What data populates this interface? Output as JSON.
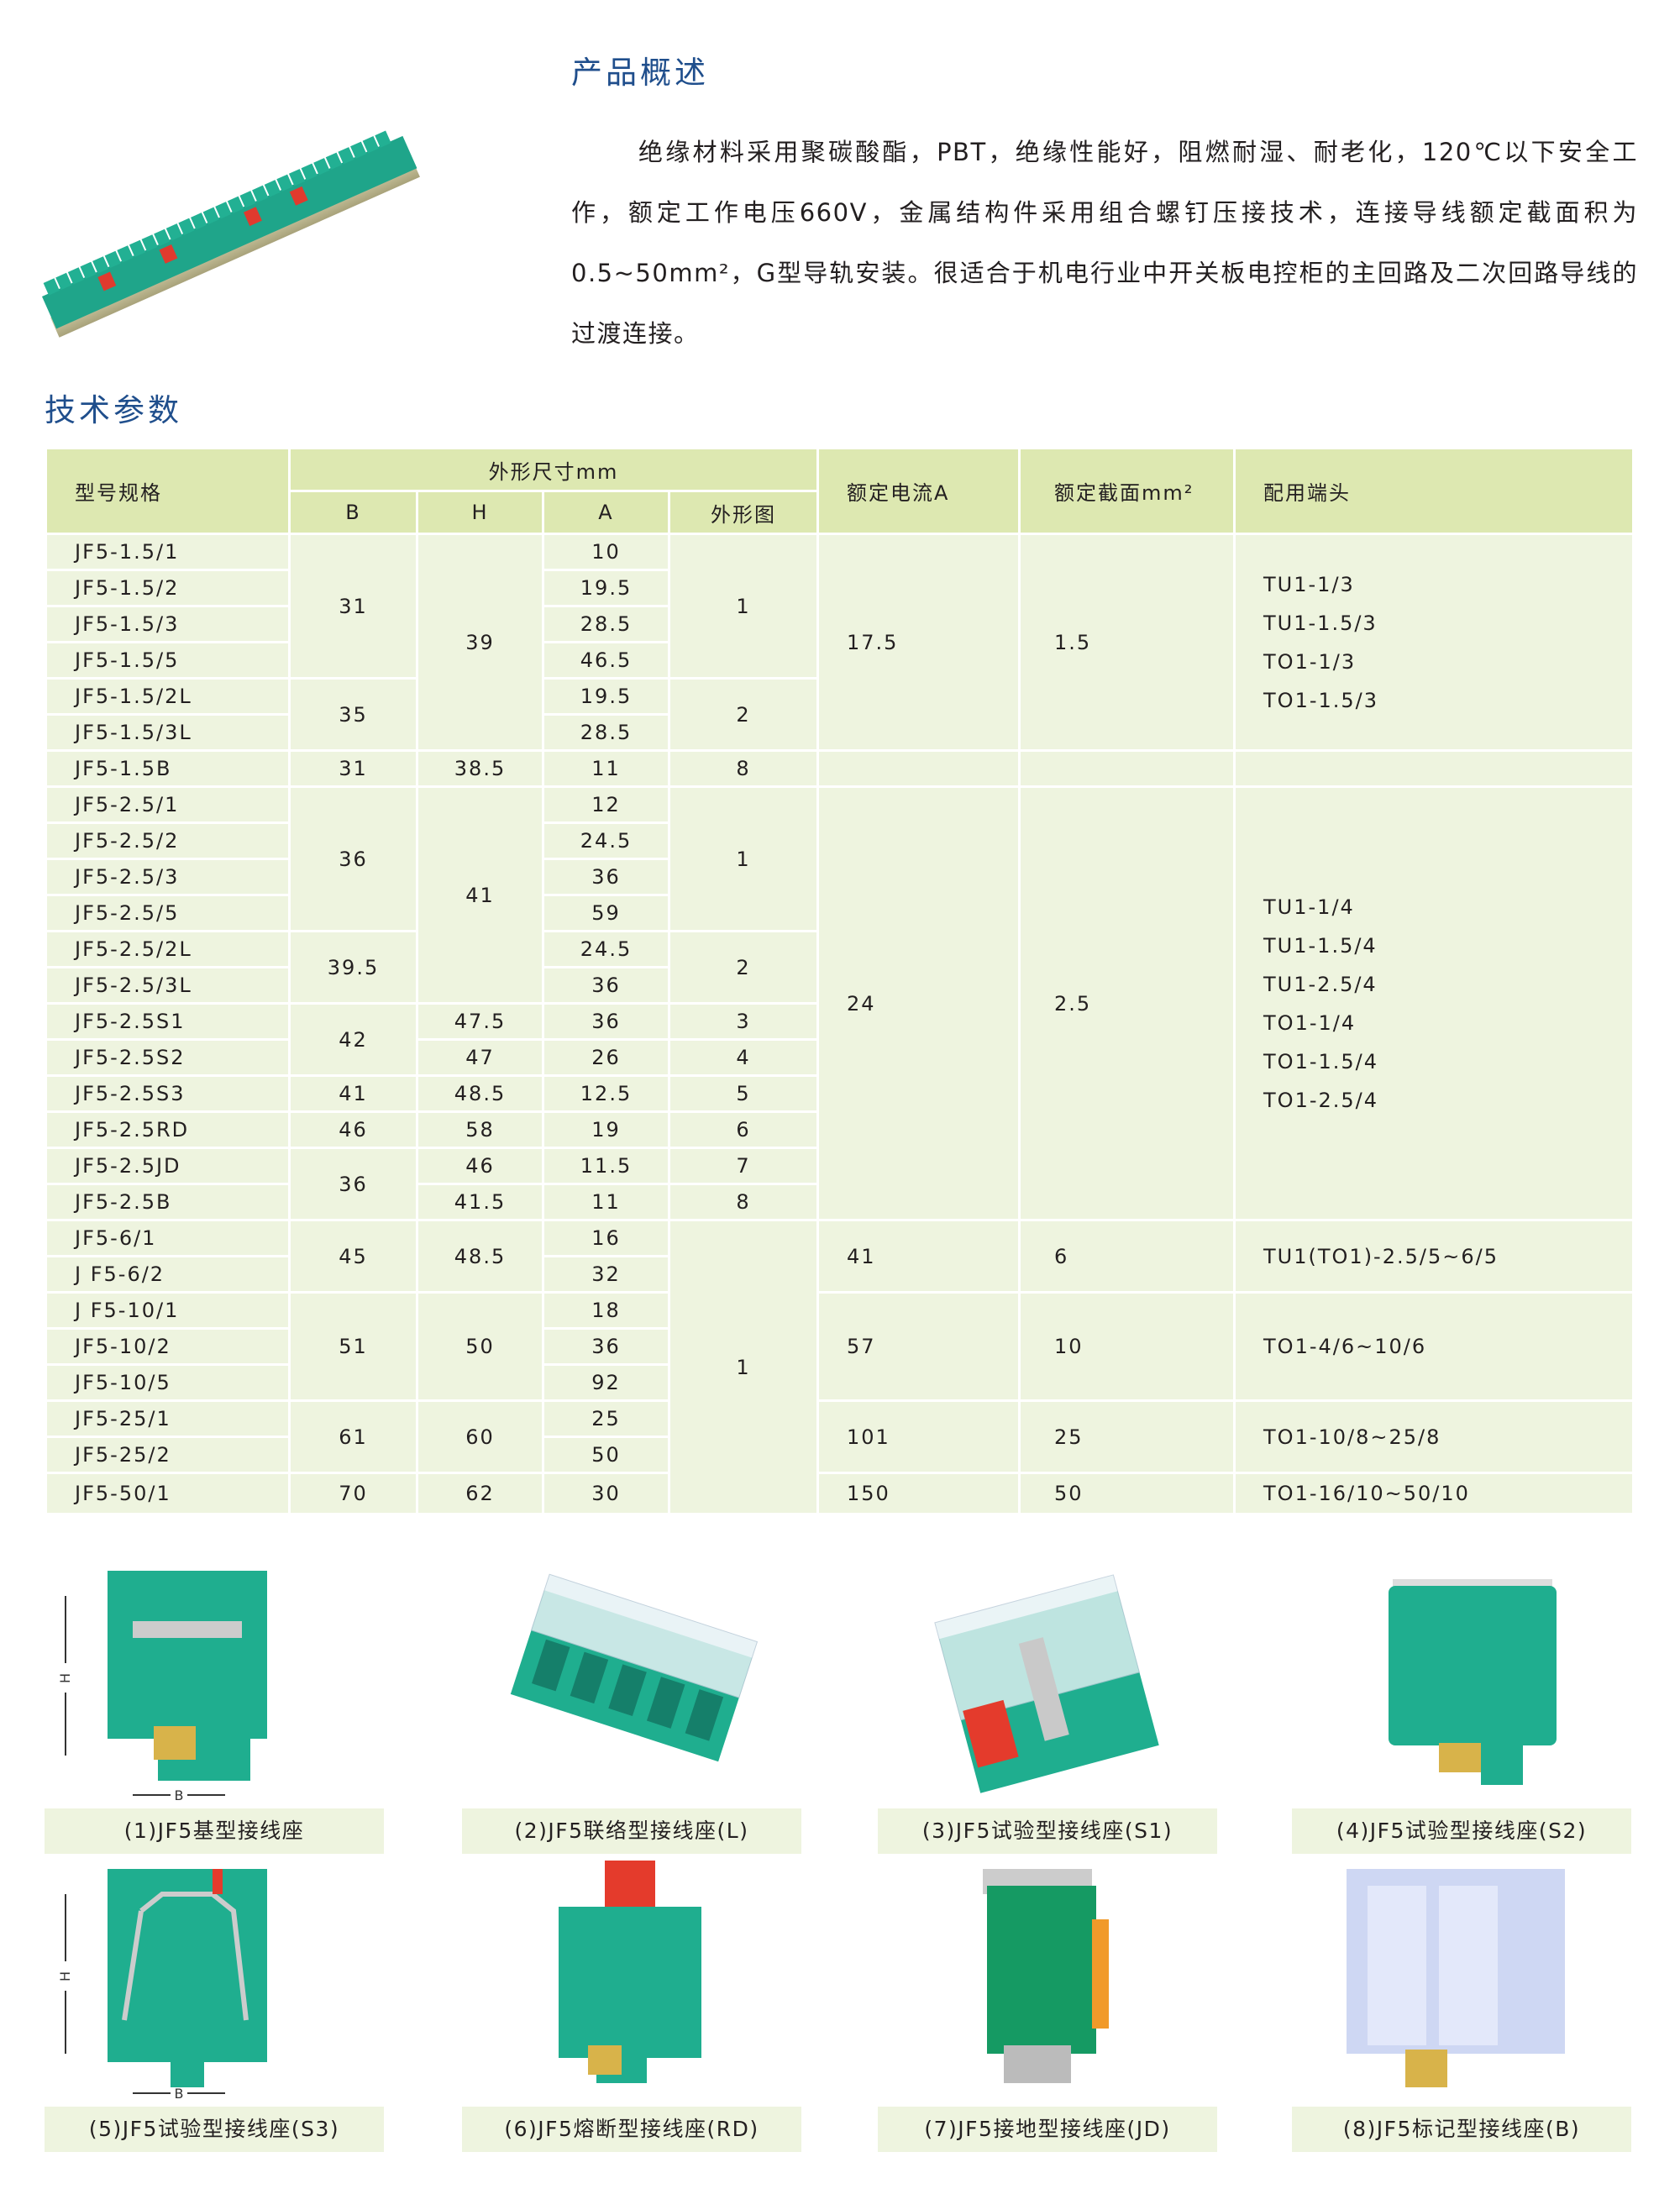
{
  "overview": {
    "title": "产品概述",
    "paragraph": "绝缘材料采用聚碳酸酯，PBT，绝缘性能好，阻燃耐湿、耐老化，120℃以下安全工作，额定工作电压660V，金属结构件采用组合螺钉压接技术，连接导线额定截面积为0.5~50mm²，G型导轨安装。很适合于机电行业中开关板电控柜的主回路及二次回路导线的过渡连接。"
  },
  "spec": {
    "title": "技术参数",
    "headers": {
      "model": "型号规格",
      "dims": "外形尺寸mm",
      "b": "B",
      "h": "H",
      "a": "A",
      "fig": "外形图",
      "current": "额定电流A",
      "section": "额定截面mm²",
      "terminal": "配用端头"
    },
    "models": [
      "JF5-1.5/1",
      "JF5-1.5/2",
      "JF5-1.5/3",
      "JF5-1.5/5",
      "JF5-1.5/2L",
      "JF5-1.5/3L",
      "JF5-1.5B",
      "JF5-2.5/1",
      "JF5-2.5/2",
      "JF5-2.5/3",
      "JF5-2.5/5",
      "JF5-2.5/2L",
      "JF5-2.5/3L",
      "JF5-2.5S1",
      "JF5-2.5S2",
      "JF5-2.5S3",
      "JF5-2.5RD",
      "JF5-2.5JD",
      "JF5-2.5B",
      "JF5-6/1",
      "J F5-6/2",
      "J F5-10/1",
      "JF5-10/2",
      "JF5-10/5",
      "JF5-25/1",
      "JF5-25/2",
      "JF5-50/1"
    ],
    "a": [
      "10",
      "19.5",
      "28.5",
      "46.5",
      "19.5",
      "28.5",
      "11",
      "12",
      "24.5",
      "36",
      "59",
      "24.5",
      "36",
      "36",
      "26",
      "12.5",
      "19",
      "11.5",
      "11",
      "16",
      "32",
      "18",
      "36",
      "92",
      "25",
      "50",
      "30"
    ],
    "b": [
      {
        "v": "31",
        "span": 4
      },
      {
        "v": "35",
        "span": 2
      },
      {
        "v": "31",
        "span": 1
      },
      {
        "v": "36",
        "span": 4
      },
      {
        "v": "39.5",
        "span": 2
      },
      {
        "v": "42",
        "span": 2
      },
      {
        "v": "41",
        "span": 1
      },
      {
        "v": "46",
        "span": 1
      },
      {
        "v": "36",
        "span": 2
      },
      {
        "v": "45",
        "span": 2
      },
      {
        "v": "51",
        "span": 3
      },
      {
        "v": "61",
        "span": 2
      },
      {
        "v": "70",
        "span": 1
      }
    ],
    "h": [
      {
        "v": "39",
        "span": 6
      },
      {
        "v": "38.5",
        "span": 1
      },
      {
        "v": "41",
        "span": 6
      },
      {
        "v": "47.5",
        "span": 1
      },
      {
        "v": "47",
        "span": 1
      },
      {
        "v": "48.5",
        "span": 1
      },
      {
        "v": "58",
        "span": 1
      },
      {
        "v": "46",
        "span": 1
      },
      {
        "v": "41.5",
        "span": 1
      },
      {
        "v": "48.5",
        "span": 2
      },
      {
        "v": "50",
        "span": 3
      },
      {
        "v": "60",
        "span": 2
      },
      {
        "v": "62",
        "span": 1
      }
    ],
    "fig": [
      {
        "v": "1",
        "span": 4
      },
      {
        "v": "2",
        "span": 2
      },
      {
        "v": "8",
        "span": 1
      },
      {
        "v": "1",
        "span": 4
      },
      {
        "v": "2",
        "span": 2
      },
      {
        "v": "3",
        "span": 1
      },
      {
        "v": "4",
        "span": 1
      },
      {
        "v": "5",
        "span": 1
      },
      {
        "v": "6",
        "span": 1
      },
      {
        "v": "7",
        "span": 1
      },
      {
        "v": "8",
        "span": 1
      },
      {
        "v": "1",
        "span": 8
      }
    ],
    "current": [
      {
        "v": "17.5",
        "span": 6
      },
      {
        "v": "",
        "span": 1
      },
      {
        "v": "24",
        "span": 12
      },
      {
        "v": "41",
        "span": 2
      },
      {
        "v": "57",
        "span": 3
      },
      {
        "v": "101",
        "span": 2
      },
      {
        "v": "150",
        "span": 1
      }
    ],
    "section": [
      {
        "v": "1.5",
        "span": 6
      },
      {
        "v": "",
        "span": 1
      },
      {
        "v": "2.5",
        "span": 12
      },
      {
        "v": "6",
        "span": 2
      },
      {
        "v": "10",
        "span": 3
      },
      {
        "v": "25",
        "span": 2
      },
      {
        "v": "50",
        "span": 1
      }
    ],
    "terminal": [
      {
        "v": [
          "TU1-1/3",
          "TU1-1.5/3",
          "TO1-1/3",
          "TO1-1.5/3"
        ],
        "span": 6
      },
      {
        "v": [],
        "span": 1
      },
      {
        "v": [
          "TU1-1/4",
          "TU1-1.5/4",
          "TU1-2.5/4",
          "TO1-1/4",
          "TO1-1.5/4",
          "TO1-2.5/4"
        ],
        "span": 12
      },
      {
        "v": [
          "TU1(TO1)-2.5/5~6/5"
        ],
        "span": 2
      },
      {
        "v": [
          "TO1-4/6~10/6"
        ],
        "span": 3
      },
      {
        "v": [
          "TO1-10/8~25/8"
        ],
        "span": 2
      },
      {
        "v": [
          "TO1-16/10~50/10"
        ],
        "span": 1
      }
    ]
  },
  "figures": [
    {
      "caption": "(1)JF5基型接线座",
      "dim_h": "H",
      "dim_b": "B",
      "color": "#1fae8f"
    },
    {
      "caption": "(2)JF5联络型接线座(L)",
      "color": "#1fae8f"
    },
    {
      "caption": "(3)JF5试验型接线座(S1)",
      "color": "#1fae8f"
    },
    {
      "caption": "(4)JF5试验型接线座(S2)",
      "color": "#1fae8f"
    },
    {
      "caption": "(5)JF5试验型接线座(S3)",
      "dim_h": "H",
      "dim_b": "B",
      "color": "#1fae8f"
    },
    {
      "caption": "(6)JF5熔断型接线座(RD)",
      "color": "#1fae8f"
    },
    {
      "caption": "(7)JF5接地型接线座(JD)",
      "color": "#159a63"
    },
    {
      "caption": "(8)JF5标记型接线座(B)",
      "color": "#c9d3f2"
    }
  ]
}
